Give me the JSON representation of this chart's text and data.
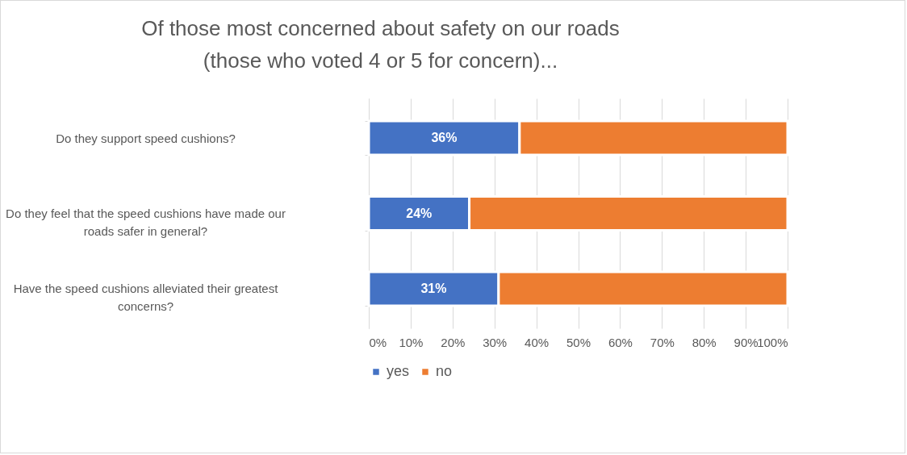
{
  "chart_data": {
    "type": "bar",
    "orientation": "horizontal",
    "stacked": true,
    "title": "Of those most concerned about safety on our roads\n(those who voted 4 or 5 for concern)...",
    "categories": [
      "Do they support speed cushions?",
      "Do they feel that the speed cushions have made our roads safer in general?",
      "Have the speed cushions alleviated their greatest concerns?"
    ],
    "series": [
      {
        "name": "yes",
        "color": "#4472c4",
        "values": [
          36,
          24,
          31
        ],
        "value_labels": [
          "36%",
          "24%",
          "31%"
        ]
      },
      {
        "name": "no",
        "color": "#ed7d31",
        "values": [
          64,
          76,
          69
        ]
      }
    ],
    "xlim": [
      0,
      100
    ],
    "xticks": [
      {
        "value": 0,
        "label": "0%"
      },
      {
        "value": 10,
        "label": "10%"
      },
      {
        "value": 20,
        "label": "20%"
      },
      {
        "value": 30,
        "label": "30%"
      },
      {
        "value": 40,
        "label": "40%"
      },
      {
        "value": 50,
        "label": "50%"
      },
      {
        "value": 60,
        "label": "60%"
      },
      {
        "value": 70,
        "label": "70%"
      },
      {
        "value": 80,
        "label": "80%"
      },
      {
        "value": 90,
        "label": "90%"
      },
      {
        "value": 100,
        "label": "100%"
      }
    ],
    "grid": "x",
    "legend": "bottom"
  }
}
